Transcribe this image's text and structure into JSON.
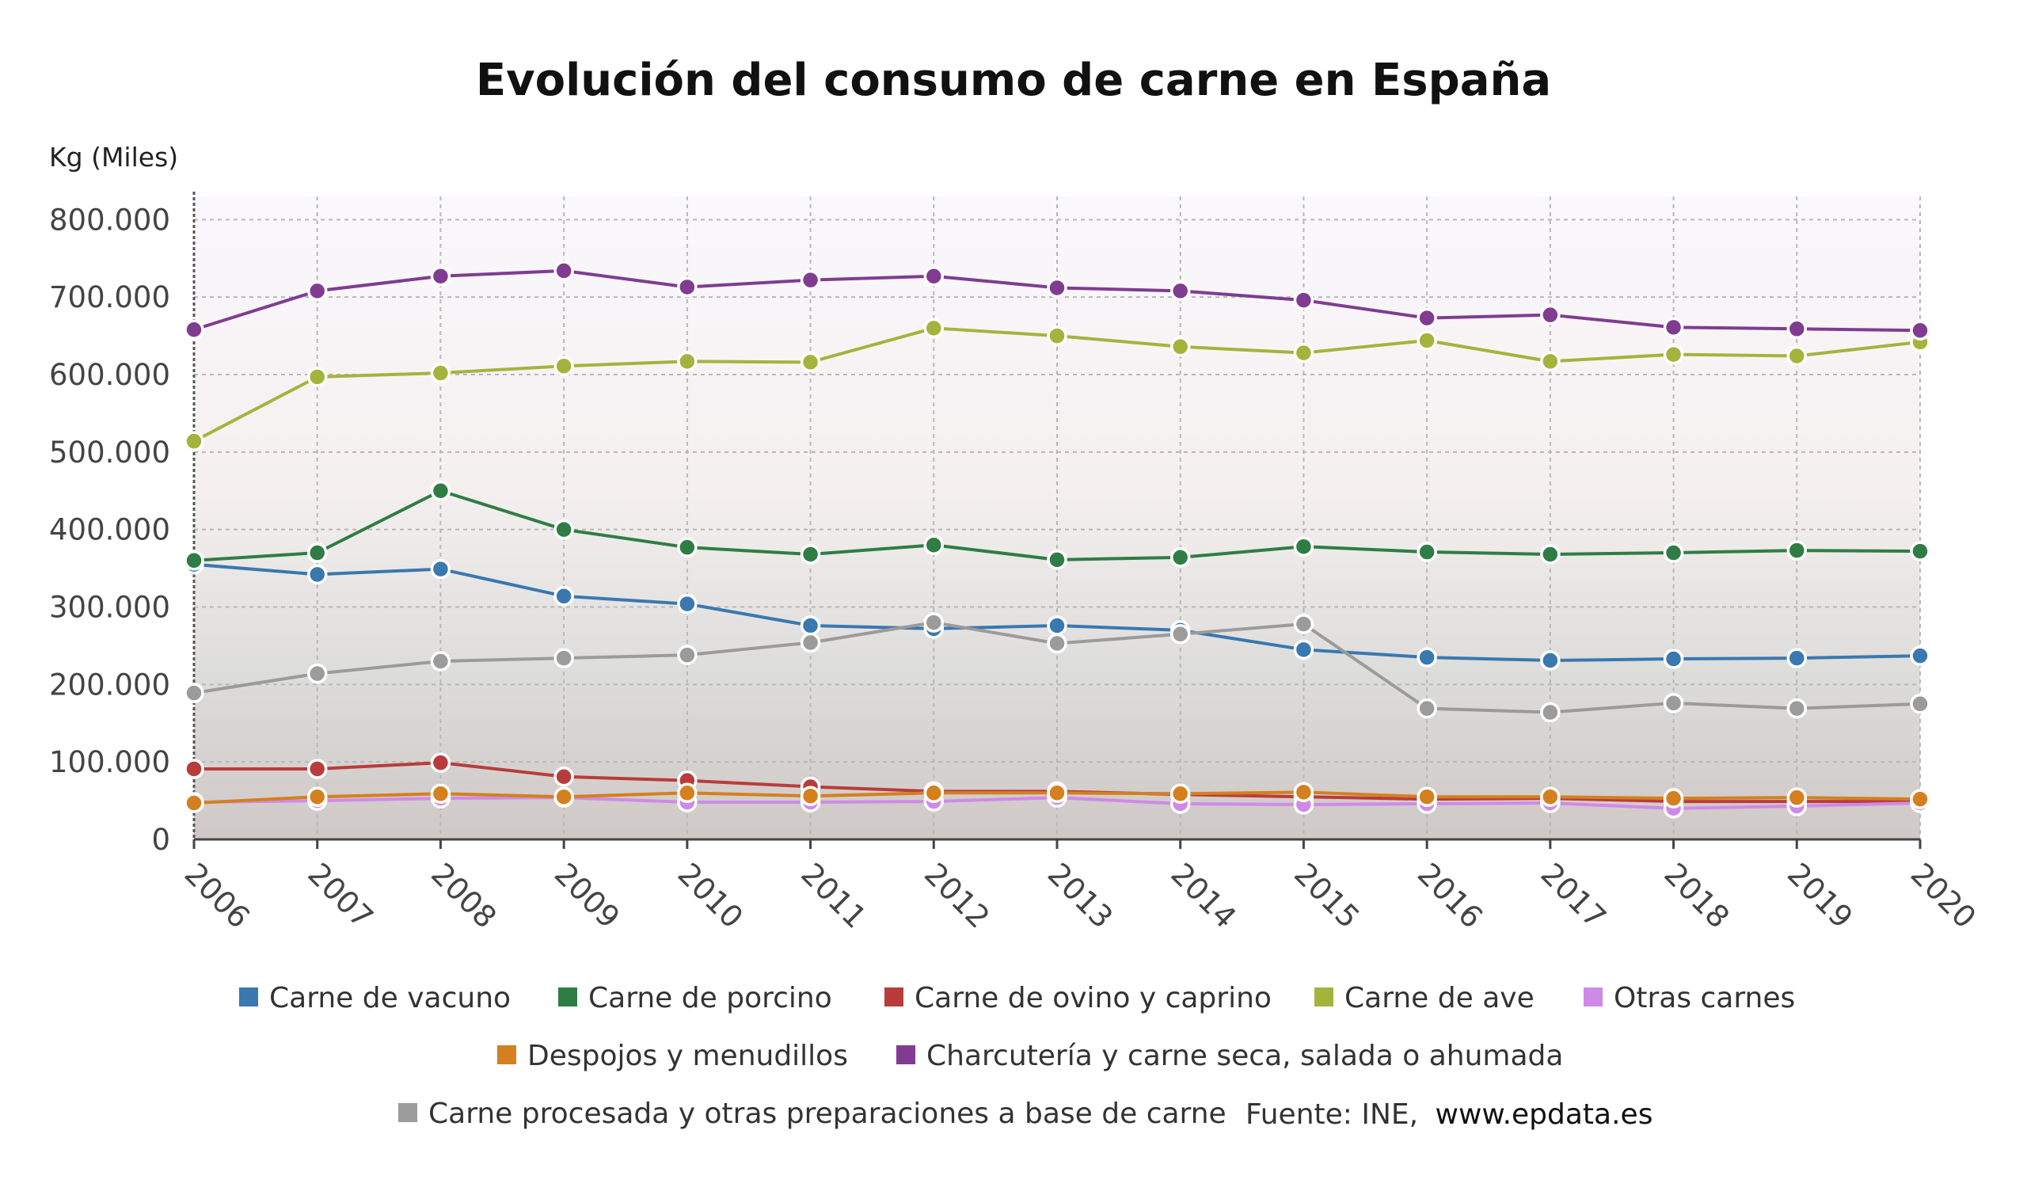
{
  "chart_data": {
    "type": "line",
    "title": "Evolución del consumo de carne en España",
    "ylabel": "Kg (Miles)",
    "xlabel": "",
    "ylim": [
      0,
      830000
    ],
    "yticks": [
      0,
      100000,
      200000,
      300000,
      400000,
      500000,
      600000,
      700000,
      800000
    ],
    "ytick_labels": [
      "0",
      "100.000",
      "200.000",
      "300.000",
      "400.000",
      "500.000",
      "600.000",
      "700.000",
      "800.000"
    ],
    "x": [
      "2006",
      "2007",
      "2008",
      "2009",
      "2010",
      "2011",
      "2012",
      "2013",
      "2014",
      "2015",
      "2016",
      "2017",
      "2018",
      "2019",
      "2020"
    ],
    "grid": true,
    "legend_position": "bottom",
    "series": [
      {
        "name": "Carne de vacuno",
        "color": "#3a78b0",
        "values": [
          355000,
          342000,
          349000,
          314000,
          304000,
          276000,
          272000,
          276000,
          270000,
          245000,
          235000,
          231000,
          233000,
          234000,
          237000
        ]
      },
      {
        "name": "Carne de porcino",
        "color": "#2f7d45",
        "values": [
          360000,
          370000,
          450000,
          400000,
          377000,
          368000,
          380000,
          361000,
          364000,
          378000,
          371000,
          368000,
          370000,
          373000,
          372000
        ]
      },
      {
        "name": "Carne de ovino y caprino",
        "color": "#b93c3c",
        "values": [
          91000,
          91000,
          99000,
          81000,
          76000,
          68000,
          62000,
          62000,
          58000,
          55000,
          52000,
          53000,
          49000,
          49000,
          49000
        ]
      },
      {
        "name": "Carne de ave",
        "color": "#a3b43c",
        "values": [
          514000,
          597000,
          602000,
          611000,
          617000,
          616000,
          660000,
          650000,
          636000,
          628000,
          644000,
          617000,
          626000,
          624000,
          642000
        ]
      },
      {
        "name": "Otras carnes",
        "color": "#cf8ae8",
        "values": [
          48000,
          50000,
          53000,
          54000,
          48000,
          48000,
          49000,
          54000,
          46000,
          45000,
          46000,
          47000,
          40000,
          43000,
          47000
        ]
      },
      {
        "name": "Despojos y menudillos",
        "color": "#d4801f",
        "values": [
          47000,
          55000,
          59000,
          55000,
          60000,
          56000,
          60000,
          60000,
          59000,
          61000,
          55000,
          55000,
          53000,
          54000,
          52000
        ]
      },
      {
        "name": "Charcutería y carne seca, salada o ahumada",
        "color": "#803c90",
        "values": [
          658000,
          708000,
          727000,
          734000,
          713000,
          722000,
          727000,
          712000,
          708000,
          696000,
          673000,
          677000,
          661000,
          659000,
          657000
        ]
      },
      {
        "name": "Carne procesada y otras preparaciones a base de carne",
        "color": "#9b9b9b",
        "values": [
          189000,
          214000,
          230000,
          234000,
          238000,
          254000,
          280000,
          253000,
          265000,
          278000,
          169000,
          164000,
          176000,
          169000,
          175000
        ]
      }
    ]
  },
  "source": {
    "label": "Fuente: INE,",
    "site": "www.epdata.es"
  }
}
